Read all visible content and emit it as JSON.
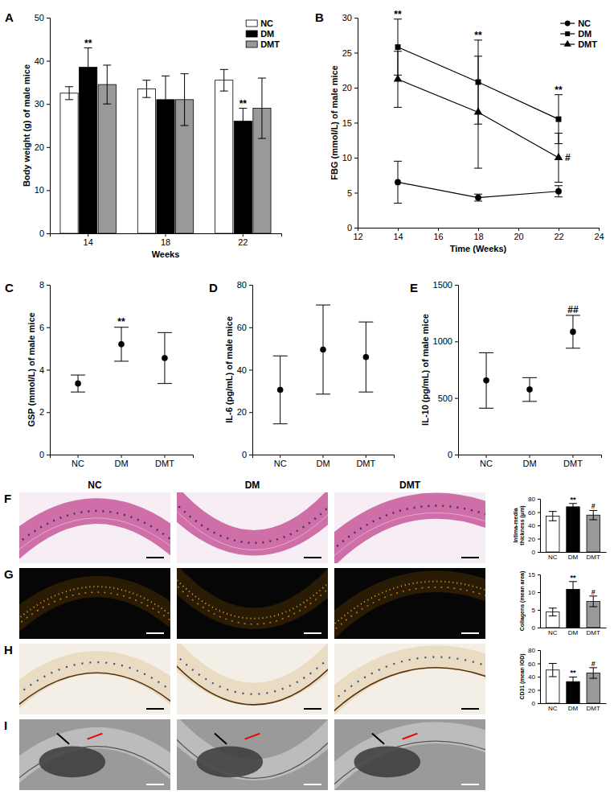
{
  "chart_data": [
    {
      "panel": "A",
      "type": "bar",
      "categories": [
        "14",
        "18",
        "22"
      ],
      "x_label": "Weeks",
      "y_label": "Body weight (g) of male mice",
      "ylim": [
        0,
        50
      ],
      "yticks": [
        0,
        10,
        20,
        30,
        40,
        50
      ],
      "legend": "top-right",
      "series": [
        {
          "name": "NC",
          "color": "#ffffff",
          "values": [
            32.5,
            33.5,
            35.5
          ],
          "errors": [
            1.5,
            2,
            2.5
          ]
        },
        {
          "name": "DM",
          "color": "#000000",
          "values": [
            38.5,
            31,
            26
          ],
          "errors": [
            4.5,
            5.5,
            3
          ]
        },
        {
          "name": "DMT",
          "color": "#999999",
          "values": [
            34.5,
            31,
            29
          ],
          "errors": [
            4.5,
            6,
            7
          ]
        }
      ],
      "annotations": [
        {
          "text": "**",
          "series": 1,
          "index": 0
        },
        {
          "text": "**",
          "series": 1,
          "index": 2
        }
      ]
    },
    {
      "panel": "B",
      "type": "line",
      "x": [
        14,
        18,
        22
      ],
      "xlim": [
        12,
        24
      ],
      "xticks": [
        12,
        14,
        16,
        18,
        20,
        22,
        24
      ],
      "ylim": [
        0,
        30
      ],
      "yticks": [
        0,
        5,
        10,
        15,
        20,
        25,
        30
      ],
      "x_label": "Time (Weeks)",
      "y_label": "FBG (mmol/L) of male mice",
      "legend": "top-right",
      "series": [
        {
          "name": "NC",
          "color": "#000000",
          "marker": "circle",
          "values": [
            6.5,
            4.3,
            5.2
          ],
          "errors": [
            3,
            0.5,
            0.8
          ]
        },
        {
          "name": "DM",
          "color": "#000000",
          "marker": "square",
          "values": [
            25.8,
            20.8,
            15.5
          ],
          "errors": [
            4,
            6,
            3.5
          ]
        },
        {
          "name": "DMT",
          "color": "#000000",
          "marker": "triangle",
          "values": [
            21.2,
            16.5,
            10
          ],
          "errors": [
            4,
            8,
            3.5
          ]
        }
      ],
      "annotations": [
        {
          "text": "**",
          "series": 1,
          "index": 0
        },
        {
          "text": "**",
          "series": 1,
          "index": 1
        },
        {
          "text": "**",
          "series": 1,
          "index": 2
        },
        {
          "text": "#",
          "series": 2,
          "index": 2
        }
      ]
    },
    {
      "panel": "C",
      "type": "dot",
      "categories": [
        "NC",
        "DM",
        "DMT"
      ],
      "values": [
        3.35,
        5.2,
        4.55
      ],
      "errors": [
        0.4,
        0.8,
        1.2
      ],
      "y_label": "GSP (mmol/L) of male mice",
      "ylim": [
        0,
        8
      ],
      "yticks": [
        0,
        2,
        4,
        6,
        8
      ],
      "color": "#000000",
      "marker": "circle",
      "annotations": [
        {
          "text": "**",
          "index": 1
        }
      ]
    },
    {
      "panel": "D",
      "type": "dot",
      "categories": [
        "NC",
        "DM",
        "DMT"
      ],
      "values": [
        30.5,
        49.5,
        46
      ],
      "errors": [
        16,
        21,
        16.5
      ],
      "y_label": "IL-6 (pg/mL) of male mice",
      "ylim": [
        0,
        80
      ],
      "yticks": [
        0,
        20,
        40,
        60,
        80
      ],
      "color": "#000000",
      "marker": "circle"
    },
    {
      "panel": "E",
      "type": "dot",
      "categories": [
        "NC",
        "DM",
        "DMT"
      ],
      "values": [
        655,
        575,
        1085
      ],
      "errors": [
        245,
        105,
        145
      ],
      "y_label": "IL-10 (pg/mL) of male mice",
      "ylim": [
        0,
        1500
      ],
      "yticks": [
        0,
        500,
        1000,
        1500
      ],
      "color": "#000000",
      "marker": "circle",
      "annotations": [
        {
          "text": "##",
          "index": 2
        }
      ]
    },
    {
      "type": "bar",
      "categories": [
        "NC",
        "DM",
        "DMT"
      ],
      "values": [
        54,
        68,
        55.5
      ],
      "errors": [
        7,
        5,
        7
      ],
      "colors": [
        "#ffffff",
        "#000000",
        "#999999"
      ],
      "y_label": "Intima-media thickness (μm)",
      "ylim": [
        0,
        80
      ],
      "yticks": [
        0,
        20,
        40,
        60,
        80
      ],
      "annotations": [
        {
          "text": "**",
          "index": 1
        },
        {
          "text": "#",
          "index": 2
        }
      ]
    },
    {
      "type": "bar",
      "categories": [
        "NC",
        "DM",
        "DMT"
      ],
      "values": [
        4.4,
        10.8,
        7.4
      ],
      "errors": [
        1.1,
        2.2,
        1.5
      ],
      "colors": [
        "#ffffff",
        "#000000",
        "#999999"
      ],
      "y_label": "Collagens (mean area)",
      "ylim": [
        0,
        15
      ],
      "yticks": [
        0,
        5,
        10,
        15
      ],
      "annotations": [
        {
          "text": "**",
          "index": 1
        },
        {
          "text": "#",
          "index": 2
        }
      ]
    },
    {
      "type": "bar",
      "categories": [
        "NC",
        "DM",
        "DMT"
      ],
      "values": [
        50,
        32.5,
        45.5
      ],
      "errors": [
        10,
        7,
        8
      ],
      "colors": [
        "#ffffff",
        "#000000",
        "#999999"
      ],
      "y_label": "CD31 (mean IOD)",
      "ylim": [
        0,
        80
      ],
      "yticks": [
        0,
        20,
        40,
        60,
        80
      ],
      "annotations": [
        {
          "text": "**",
          "index": 1
        },
        {
          "text": "#",
          "index": 2
        }
      ]
    }
  ],
  "images": {
    "column_labels": [
      "NC",
      "DM",
      "DMT"
    ],
    "rows": [
      "F",
      "G",
      "H",
      "I"
    ]
  }
}
